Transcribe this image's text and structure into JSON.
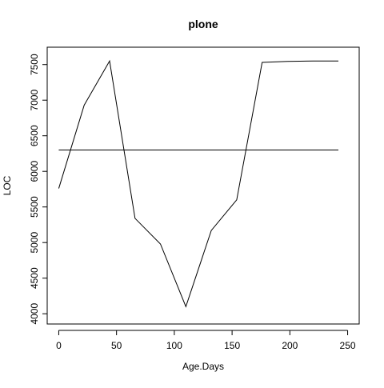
{
  "chart_data": {
    "type": "line",
    "title": "plone",
    "xlabel": "Age.Days",
    "ylabel": "LOC",
    "xlim": [
      0,
      250
    ],
    "ylim": [
      4000,
      7600
    ],
    "x_ticks": [
      0,
      50,
      100,
      150,
      200,
      250
    ],
    "y_ticks": [
      4000,
      4500,
      5000,
      5500,
      6000,
      6500,
      7000,
      7500
    ],
    "grid": false,
    "series": [
      {
        "x": [
          0,
          22,
          44,
          66,
          88,
          110,
          132,
          154,
          176,
          198,
          220,
          242
        ],
        "y": [
          5760,
          6930,
          7550,
          5340,
          4980,
          4100,
          5170,
          5600,
          7530,
          7545,
          7550,
          7550
        ]
      },
      {
        "x": [
          0,
          242
        ],
        "y": [
          6300,
          6300
        ]
      }
    ],
    "colors": {
      "line": "#000000",
      "axis": "#000000",
      "background": "#ffffff"
    }
  }
}
